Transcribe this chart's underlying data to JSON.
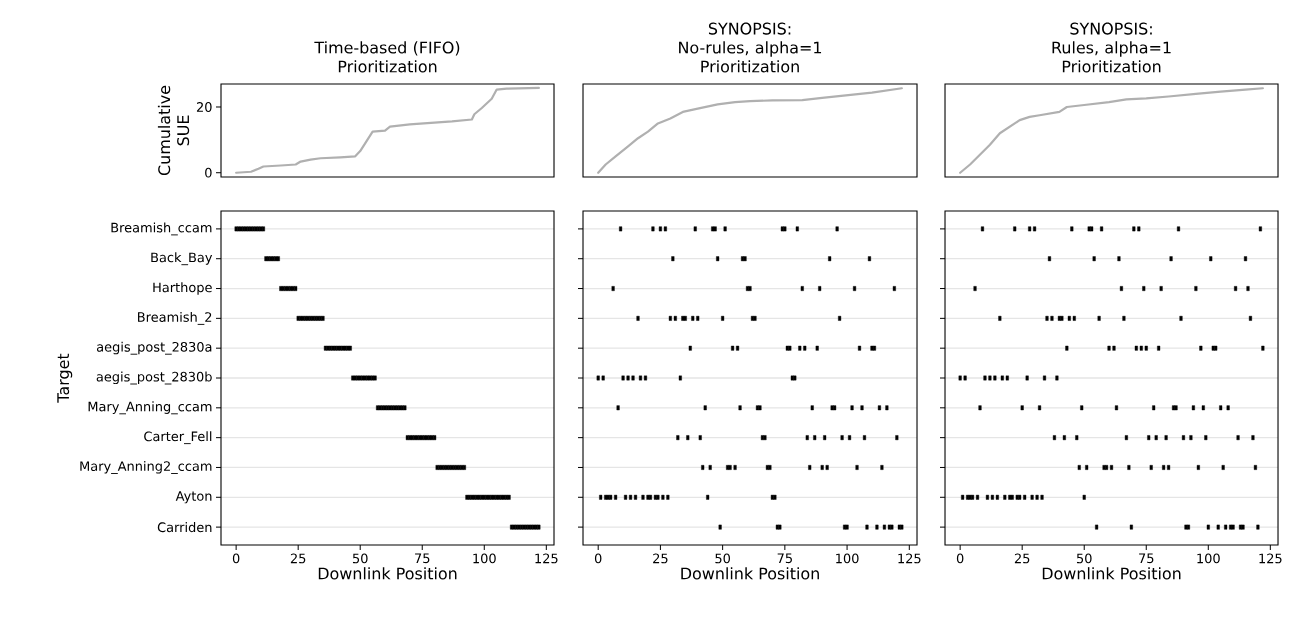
{
  "chart_data": [
    {
      "type": "line",
      "title": "Time-based (FIFO) Prioritization",
      "ylabel": "Cumulative SUE",
      "xlim": [
        -6.1,
        128.1
      ],
      "ylim": [
        -1.3,
        27
      ],
      "yticks": [
        0,
        20
      ],
      "tick_labels": "y",
      "series": [
        {
          "color": "#b0b0b0",
          "x": [
            0,
            6,
            9,
            11,
            18,
            24,
            26,
            30,
            34,
            42,
            48,
            50,
            55,
            60,
            62,
            70,
            87,
            95,
            96,
            99,
            103,
            105,
            109,
            122
          ],
          "values": [
            0,
            0.3,
            1.2,
            1.9,
            2.2,
            2.5,
            3.4,
            4,
            4.4,
            4.7,
            5,
            6.6,
            12.5,
            12.8,
            14,
            14.7,
            15.6,
            16.2,
            17.8,
            19.7,
            22.5,
            25.3,
            25.6,
            25.8
          ]
        }
      ]
    },
    {
      "type": "line",
      "title": "SYNOPSIS:",
      "subtitle": "No-rules, alpha=1 Prioritization",
      "xlim": [
        -6.1,
        128.1
      ],
      "ylim": [
        -1.3,
        27
      ],
      "tick_labels": false,
      "series": [
        {
          "color": "#b0b0b0",
          "x": [
            0,
            3,
            7,
            12,
            16,
            20,
            24,
            29,
            34,
            40,
            48,
            55,
            61,
            70,
            82,
            90,
            100,
            110,
            122
          ],
          "values": [
            0,
            2.5,
            5,
            8,
            10.5,
            12.5,
            15,
            16.5,
            18.5,
            19.5,
            20.8,
            21.5,
            21.8,
            22,
            22.1,
            22.8,
            23.6,
            24.4,
            25.7
          ]
        }
      ]
    },
    {
      "type": "line",
      "title": "SYNOPSIS:",
      "subtitle": "Rules, alpha=1 Prioritization",
      "xlim": [
        -6.1,
        128.1
      ],
      "ylim": [
        -1.3,
        27
      ],
      "tick_labels": false,
      "series": [
        {
          "color": "#b0b0b0",
          "x": [
            0,
            4,
            8,
            12,
            16,
            20,
            24,
            28,
            32,
            36,
            40,
            43,
            50,
            60,
            67,
            75,
            84,
            95,
            105,
            115,
            122
          ],
          "values": [
            0,
            2.5,
            5.5,
            8.5,
            12,
            14,
            16,
            17,
            17.5,
            18,
            18.5,
            20,
            20.6,
            21.5,
            22.3,
            22.6,
            23.2,
            24,
            24.7,
            25.3,
            25.7
          ]
        }
      ]
    },
    {
      "type": "scatter",
      "orientation": "horizontal",
      "xlabel": "Downlink Position",
      "ylabel": "Target",
      "xlim": [
        -6.1,
        128.1
      ],
      "xticks": [
        0,
        25,
        50,
        75,
        100,
        125
      ],
      "grid": "y",
      "marker": "square",
      "categories": [
        "Breamish_ccam",
        "Back_Bay",
        "Harthope",
        "Breamish_2",
        "aegis_post_2830a",
        "aegis_post_2830b",
        "Mary_Anning_ccam",
        "Carter_Fell",
        "Mary_Anning2_ccam",
        "Ayton",
        "Carriden"
      ],
      "series": [
        {
          "color": "#000000",
          "x": [
            "Breamish_ccam",
            "Breamish_ccam",
            "Breamish_ccam",
            "Breamish_ccam",
            "Breamish_ccam",
            "Breamish_ccam",
            "Breamish_ccam",
            "Breamish_ccam",
            "Breamish_ccam",
            "Breamish_ccam",
            "Breamish_ccam",
            "Breamish_ccam",
            "Back_Bay",
            "Back_Bay",
            "Back_Bay",
            "Back_Bay",
            "Back_Bay",
            "Back_Bay",
            "Harthope",
            "Harthope",
            "Harthope",
            "Harthope",
            "Harthope",
            "Harthope",
            "Harthope",
            "Breamish_2",
            "Breamish_2",
            "Breamish_2",
            "Breamish_2",
            "Breamish_2",
            "Breamish_2",
            "Breamish_2",
            "Breamish_2",
            "Breamish_2",
            "Breamish_2",
            "Breamish_2",
            "aegis_post_2830a",
            "aegis_post_2830a",
            "aegis_post_2830a",
            "aegis_post_2830a",
            "aegis_post_2830a",
            "aegis_post_2830a",
            "aegis_post_2830a",
            "aegis_post_2830a",
            "aegis_post_2830a",
            "aegis_post_2830a",
            "aegis_post_2830a",
            "aegis_post_2830b",
            "aegis_post_2830b",
            "aegis_post_2830b",
            "aegis_post_2830b",
            "aegis_post_2830b",
            "aegis_post_2830b",
            "aegis_post_2830b",
            "aegis_post_2830b",
            "aegis_post_2830b",
            "aegis_post_2830b",
            "Mary_Anning_ccam",
            "Mary_Anning_ccam",
            "Mary_Anning_ccam",
            "Mary_Anning_ccam",
            "Mary_Anning_ccam",
            "Mary_Anning_ccam",
            "Mary_Anning_ccam",
            "Mary_Anning_ccam",
            "Mary_Anning_ccam",
            "Mary_Anning_ccam",
            "Mary_Anning_ccam",
            "Mary_Anning_ccam",
            "Carter_Fell",
            "Carter_Fell",
            "Carter_Fell",
            "Carter_Fell",
            "Carter_Fell",
            "Carter_Fell",
            "Carter_Fell",
            "Carter_Fell",
            "Carter_Fell",
            "Carter_Fell",
            "Carter_Fell",
            "Carter_Fell",
            "Mary_Anning2_ccam",
            "Mary_Anning2_ccam",
            "Mary_Anning2_ccam",
            "Mary_Anning2_ccam",
            "Mary_Anning2_ccam",
            "Mary_Anning2_ccam",
            "Mary_Anning2_ccam",
            "Mary_Anning2_ccam",
            "Mary_Anning2_ccam",
            "Mary_Anning2_ccam",
            "Mary_Anning2_ccam",
            "Mary_Anning2_ccam",
            "Ayton",
            "Ayton",
            "Ayton",
            "Ayton",
            "Ayton",
            "Ayton",
            "Ayton",
            "Ayton",
            "Ayton",
            "Ayton",
            "Ayton",
            "Ayton",
            "Ayton",
            "Ayton",
            "Ayton",
            "Ayton",
            "Ayton",
            "Ayton",
            "Carriden",
            "Carriden",
            "Carriden",
            "Carriden",
            "Carriden",
            "Carriden",
            "Carriden",
            "Carriden",
            "Carriden",
            "Carriden",
            "Carriden",
            "Carriden"
          ],
          "values": [
            0,
            1,
            2,
            3,
            4,
            5,
            6,
            7,
            8,
            9,
            10,
            11,
            12,
            13,
            14,
            15,
            16,
            17,
            18,
            19,
            20,
            21,
            22,
            23,
            24,
            25,
            26,
            27,
            28,
            29,
            30,
            31,
            32,
            33,
            34,
            35,
            36,
            37,
            38,
            39,
            40,
            41,
            42,
            43,
            44,
            45,
            46,
            47,
            48,
            49,
            50,
            51,
            52,
            53,
            54,
            55,
            56,
            57,
            58,
            59,
            60,
            61,
            62,
            63,
            64,
            65,
            66,
            67,
            68,
            69,
            70,
            71,
            72,
            73,
            74,
            75,
            76,
            77,
            78,
            79,
            80,
            81,
            82,
            83,
            84,
            85,
            86,
            87,
            88,
            89,
            90,
            91,
            92,
            93,
            94,
            95,
            96,
            97,
            98,
            99,
            100,
            101,
            102,
            103,
            104,
            105,
            106,
            107,
            108,
            109,
            110,
            111,
            112,
            113,
            114,
            115,
            116,
            117,
            118,
            119,
            120,
            121,
            122
          ]
        }
      ]
    },
    {
      "type": "scatter",
      "orientation": "horizontal",
      "xlabel": "Downlink Position",
      "xlim": [
        -6.1,
        128.1
      ],
      "xticks": [
        0,
        25,
        50,
        75,
        100,
        125
      ],
      "grid": "y",
      "marker": "square",
      "tick_labels": "x",
      "categories": [
        "Breamish_ccam",
        "Back_Bay",
        "Harthope",
        "Breamish_2",
        "aegis_post_2830a",
        "aegis_post_2830b",
        "Mary_Anning_ccam",
        "Carter_Fell",
        "Mary_Anning2_ccam",
        "Ayton",
        "Carriden"
      ],
      "series": [
        {
          "color": "#000000",
          "x": [
            "Breamish_ccam",
            "Breamish_ccam",
            "Breamish_ccam",
            "Breamish_ccam",
            "Breamish_ccam",
            "Breamish_ccam",
            "Breamish_ccam",
            "Breamish_ccam",
            "Breamish_ccam",
            "Breamish_ccam",
            "Breamish_ccam",
            "Breamish_ccam",
            "Back_Bay",
            "Back_Bay",
            "Back_Bay",
            "Back_Bay",
            "Back_Bay",
            "Back_Bay",
            "Harthope",
            "Harthope",
            "Harthope",
            "Harthope",
            "Harthope",
            "Harthope",
            "Harthope",
            "Breamish_2",
            "Breamish_2",
            "Breamish_2",
            "Breamish_2",
            "Breamish_2",
            "Breamish_2",
            "Breamish_2",
            "Breamish_2",
            "Breamish_2",
            "Breamish_2",
            "Breamish_2",
            "aegis_post_2830a",
            "aegis_post_2830a",
            "aegis_post_2830a",
            "aegis_post_2830a",
            "aegis_post_2830a",
            "aegis_post_2830a",
            "aegis_post_2830a",
            "aegis_post_2830a",
            "aegis_post_2830a",
            "aegis_post_2830a",
            "aegis_post_2830a",
            "aegis_post_2830b",
            "aegis_post_2830b",
            "aegis_post_2830b",
            "aegis_post_2830b",
            "aegis_post_2830b",
            "aegis_post_2830b",
            "aegis_post_2830b",
            "aegis_post_2830b",
            "aegis_post_2830b",
            "aegis_post_2830b",
            "Mary_Anning_ccam",
            "Mary_Anning_ccam",
            "Mary_Anning_ccam",
            "Mary_Anning_ccam",
            "Mary_Anning_ccam",
            "Mary_Anning_ccam",
            "Mary_Anning_ccam",
            "Mary_Anning_ccam",
            "Mary_Anning_ccam",
            "Mary_Anning_ccam",
            "Mary_Anning_ccam",
            "Mary_Anning_ccam",
            "Carter_Fell",
            "Carter_Fell",
            "Carter_Fell",
            "Carter_Fell",
            "Carter_Fell",
            "Carter_Fell",
            "Carter_Fell",
            "Carter_Fell",
            "Carter_Fell",
            "Carter_Fell",
            "Carter_Fell",
            "Carter_Fell",
            "Mary_Anning2_ccam",
            "Mary_Anning2_ccam",
            "Mary_Anning2_ccam",
            "Mary_Anning2_ccam",
            "Mary_Anning2_ccam",
            "Mary_Anning2_ccam",
            "Mary_Anning2_ccam",
            "Mary_Anning2_ccam",
            "Mary_Anning2_ccam",
            "Mary_Anning2_ccam",
            "Mary_Anning2_ccam",
            "Mary_Anning2_ccam",
            "Ayton",
            "Ayton",
            "Ayton",
            "Ayton",
            "Ayton",
            "Ayton",
            "Ayton",
            "Ayton",
            "Ayton",
            "Ayton",
            "Ayton",
            "Ayton",
            "Ayton",
            "Ayton",
            "Ayton",
            "Ayton",
            "Ayton",
            "Ayton",
            "Carriden",
            "Carriden",
            "Carriden",
            "Carriden",
            "Carriden",
            "Carriden",
            "Carriden",
            "Carriden",
            "Carriden",
            "Carriden",
            "Carriden",
            "Carriden"
          ],
          "values": [
            9,
            22,
            25,
            27,
            39,
            46,
            47,
            51,
            74,
            75,
            80,
            96,
            30,
            48,
            58,
            59,
            93,
            109,
            6,
            60,
            61,
            82,
            89,
            103,
            119,
            16,
            29,
            31,
            34,
            35,
            38,
            40,
            50,
            62,
            63,
            97,
            37,
            54,
            56,
            76,
            77,
            81,
            83,
            88,
            105,
            110,
            111,
            0,
            2,
            10,
            12,
            14,
            17,
            19,
            33,
            78,
            79,
            8,
            43,
            57,
            64,
            65,
            86,
            94,
            95,
            102,
            106,
            113,
            116,
            32,
            36,
            41,
            66,
            67,
            84,
            87,
            91,
            98,
            101,
            107,
            120,
            42,
            45,
            52,
            53,
            55,
            68,
            69,
            85,
            90,
            92,
            104,
            114,
            1,
            3,
            4,
            5,
            7,
            11,
            13,
            15,
            18,
            20,
            21,
            23,
            24,
            26,
            28,
            44,
            70,
            71,
            49,
            72,
            73,
            99,
            100,
            108,
            112,
            115,
            117,
            118,
            121,
            122
          ]
        }
      ]
    },
    {
      "type": "scatter",
      "orientation": "horizontal",
      "xlabel": "Downlink Position",
      "xlim": [
        -6.1,
        128.1
      ],
      "xticks": [
        0,
        25,
        50,
        75,
        100,
        125
      ],
      "grid": "y",
      "marker": "square",
      "tick_labels": "x",
      "categories": [
        "Breamish_ccam",
        "Back_Bay",
        "Harthope",
        "Breamish_2",
        "aegis_post_2830a",
        "aegis_post_2830b",
        "Mary_Anning_ccam",
        "Carter_Fell",
        "Mary_Anning2_ccam",
        "Ayton",
        "Carriden"
      ],
      "series": [
        {
          "color": "#000000",
          "x": [
            "Breamish_ccam",
            "Breamish_ccam",
            "Breamish_ccam",
            "Breamish_ccam",
            "Breamish_ccam",
            "Breamish_ccam",
            "Breamish_ccam",
            "Breamish_ccam",
            "Breamish_ccam",
            "Breamish_ccam",
            "Breamish_ccam",
            "Breamish_ccam",
            "Back_Bay",
            "Back_Bay",
            "Back_Bay",
            "Back_Bay",
            "Back_Bay",
            "Back_Bay",
            "Harthope",
            "Harthope",
            "Harthope",
            "Harthope",
            "Harthope",
            "Harthope",
            "Harthope",
            "Breamish_2",
            "Breamish_2",
            "Breamish_2",
            "Breamish_2",
            "Breamish_2",
            "Breamish_2",
            "Breamish_2",
            "Breamish_2",
            "Breamish_2",
            "Breamish_2",
            "Breamish_2",
            "aegis_post_2830a",
            "aegis_post_2830a",
            "aegis_post_2830a",
            "aegis_post_2830a",
            "aegis_post_2830a",
            "aegis_post_2830a",
            "aegis_post_2830a",
            "aegis_post_2830a",
            "aegis_post_2830a",
            "aegis_post_2830a",
            "aegis_post_2830a",
            "aegis_post_2830b",
            "aegis_post_2830b",
            "aegis_post_2830b",
            "aegis_post_2830b",
            "aegis_post_2830b",
            "aegis_post_2830b",
            "aegis_post_2830b",
            "aegis_post_2830b",
            "aegis_post_2830b",
            "aegis_post_2830b",
            "Mary_Anning_ccam",
            "Mary_Anning_ccam",
            "Mary_Anning_ccam",
            "Mary_Anning_ccam",
            "Mary_Anning_ccam",
            "Mary_Anning_ccam",
            "Mary_Anning_ccam",
            "Mary_Anning_ccam",
            "Mary_Anning_ccam",
            "Mary_Anning_ccam",
            "Mary_Anning_ccam",
            "Mary_Anning_ccam",
            "Carter_Fell",
            "Carter_Fell",
            "Carter_Fell",
            "Carter_Fell",
            "Carter_Fell",
            "Carter_Fell",
            "Carter_Fell",
            "Carter_Fell",
            "Carter_Fell",
            "Carter_Fell",
            "Carter_Fell",
            "Carter_Fell",
            "Mary_Anning2_ccam",
            "Mary_Anning2_ccam",
            "Mary_Anning2_ccam",
            "Mary_Anning2_ccam",
            "Mary_Anning2_ccam",
            "Mary_Anning2_ccam",
            "Mary_Anning2_ccam",
            "Mary_Anning2_ccam",
            "Mary_Anning2_ccam",
            "Mary_Anning2_ccam",
            "Mary_Anning2_ccam",
            "Mary_Anning2_ccam",
            "Ayton",
            "Ayton",
            "Ayton",
            "Ayton",
            "Ayton",
            "Ayton",
            "Ayton",
            "Ayton",
            "Ayton",
            "Ayton",
            "Ayton",
            "Ayton",
            "Ayton",
            "Ayton",
            "Ayton",
            "Ayton",
            "Ayton",
            "Ayton",
            "Carriden",
            "Carriden",
            "Carriden",
            "Carriden",
            "Carriden",
            "Carriden",
            "Carriden",
            "Carriden",
            "Carriden",
            "Carriden",
            "Carriden",
            "Carriden"
          ],
          "values": [
            9,
            22,
            28,
            30,
            45,
            52,
            53,
            57,
            70,
            72,
            88,
            121,
            36,
            54,
            64,
            85,
            101,
            115,
            6,
            65,
            74,
            81,
            95,
            111,
            116,
            16,
            35,
            37,
            40,
            41,
            44,
            46,
            56,
            66,
            89,
            117,
            43,
            60,
            62,
            71,
            73,
            75,
            80,
            97,
            102,
            103,
            122,
            0,
            2,
            10,
            12,
            14,
            17,
            19,
            27,
            34,
            39,
            8,
            25,
            32,
            49,
            63,
            78,
            86,
            87,
            94,
            98,
            105,
            108,
            38,
            42,
            47,
            67,
            76,
            79,
            83,
            90,
            93,
            99,
            112,
            118,
            48,
            51,
            58,
            59,
            61,
            68,
            77,
            82,
            84,
            96,
            106,
            119,
            1,
            3,
            4,
            5,
            7,
            11,
            13,
            15,
            18,
            20,
            21,
            23,
            24,
            26,
            29,
            31,
            33,
            50,
            55,
            69,
            91,
            92,
            100,
            104,
            107,
            109,
            110,
            113,
            114,
            120
          ]
        }
      ]
    }
  ]
}
